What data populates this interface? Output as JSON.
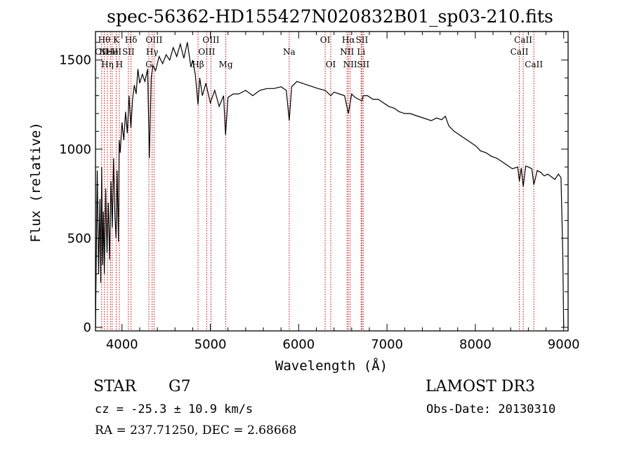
{
  "title": "spec-56362-HD155427N020832B01_sp03-210.fits",
  "footer": {
    "object_type": "STAR",
    "subclass": "G7",
    "redshift": "cz = -25.3 ± 10.9 km/s",
    "coords": "RA = 237.71250, DEC =   2.68668",
    "survey": "LAMOST DR3",
    "obs_date": "Obs-Date: 20130310"
  },
  "chart_data": {
    "type": "line",
    "title": "spec-56362-HD155427N020832B01_sp03-210.fits",
    "xlabel": "Wavelength (Å)",
    "ylabel": "Flux (relative)",
    "xlim": [
      3700,
      9050
    ],
    "ylim": [
      -20,
      1660
    ],
    "xticks": [
      4000,
      5000,
      6000,
      7000,
      8000,
      9000
    ],
    "yticks": [
      0,
      500,
      1000,
      1500
    ],
    "grid": false,
    "line_color": "#000000",
    "marker_color": "#cc0000",
    "spectrum": {
      "x": [
        3700,
        3720,
        3735,
        3750,
        3760,
        3770,
        3780,
        3790,
        3800,
        3815,
        3830,
        3845,
        3860,
        3875,
        3890,
        3905,
        3920,
        3933,
        3945,
        3960,
        3968,
        3980,
        4000,
        4020,
        4040,
        4060,
        4080,
        4101,
        4120,
        4140,
        4160,
        4180,
        4200,
        4230,
        4260,
        4290,
        4310,
        4330,
        4350,
        4380,
        4420,
        4460,
        4500,
        4540,
        4580,
        4620,
        4660,
        4700,
        4740,
        4760,
        4780,
        4800,
        4830,
        4861,
        4880,
        4910,
        4950,
        5000,
        5050,
        5100,
        5150,
        5172,
        5200,
        5260,
        5320,
        5400,
        5480,
        5560,
        5640,
        5720,
        5800,
        5860,
        5893,
        5920,
        5980,
        6040,
        6100,
        6160,
        6220,
        6300,
        6363,
        6400,
        6460,
        6520,
        6563,
        6600,
        6640,
        6680,
        6716,
        6731,
        6780,
        6840,
        6900,
        6960,
        7020,
        7080,
        7140,
        7200,
        7260,
        7320,
        7380,
        7440,
        7500,
        7560,
        7620,
        7660,
        7700,
        7760,
        7820,
        7880,
        7940,
        8000,
        8060,
        8120,
        8180,
        8240,
        8300,
        8360,
        8420,
        8480,
        8498,
        8520,
        8542,
        8570,
        8600,
        8640,
        8662,
        8700,
        8740,
        8780,
        8820,
        8860,
        8900,
        8940,
        8970,
        8990,
        9000
      ],
      "y": [
        0,
        880,
        300,
        720,
        250,
        900,
        350,
        650,
        300,
        780,
        420,
        700,
        380,
        820,
        560,
        950,
        620,
        500,
        880,
        480,
        1050,
        980,
        1150,
        1050,
        1210,
        1090,
        1300,
        1120,
        1280,
        1360,
        1310,
        1450,
        1370,
        1420,
        1380,
        1450,
        950,
        1400,
        1470,
        1440,
        1520,
        1480,
        1530,
        1500,
        1570,
        1520,
        1590,
        1510,
        1600,
        1530,
        1460,
        1500,
        1420,
        1250,
        1400,
        1300,
        1370,
        1260,
        1330,
        1240,
        1300,
        1080,
        1290,
        1310,
        1310,
        1330,
        1300,
        1330,
        1340,
        1340,
        1350,
        1330,
        1160,
        1350,
        1380,
        1370,
        1360,
        1350,
        1340,
        1330,
        1300,
        1320,
        1310,
        1300,
        1200,
        1310,
        1290,
        1280,
        1270,
        1300,
        1300,
        1280,
        1280,
        1260,
        1240,
        1230,
        1210,
        1200,
        1200,
        1190,
        1180,
        1170,
        1160,
        1175,
        1165,
        1185,
        1130,
        1100,
        1080,
        1060,
        1040,
        1020,
        990,
        980,
        960,
        950,
        930,
        910,
        890,
        900,
        820,
        895,
        790,
        905,
        900,
        890,
        800,
        880,
        870,
        850,
        860,
        845,
        830,
        860,
        840,
        400,
        0
      ]
    },
    "lines": [
      {
        "x": 3770,
        "label": "OII",
        "row": 1
      },
      {
        "x": 3799,
        "label": "Hθ",
        "row": 0
      },
      {
        "x": 3835,
        "label": "Hη",
        "row": 2
      },
      {
        "x": 3869,
        "label": "NeIII",
        "row": 1
      },
      {
        "x": 3889,
        "label": "He",
        "row": 1
      },
      {
        "x": 3934,
        "label": "K",
        "row": 0
      },
      {
        "x": 3969,
        "label": "H",
        "row": 2
      },
      {
        "x": 4072,
        "label": "SII",
        "row": 1
      },
      {
        "x": 4102,
        "label": "Hδ",
        "row": 0
      },
      {
        "x": 4304,
        "label": "G",
        "row": 2
      },
      {
        "x": 4341,
        "label": "Hγ",
        "row": 1
      },
      {
        "x": 4363,
        "label": "OIII",
        "row": 0
      },
      {
        "x": 4861,
        "label": "Hβ",
        "row": 2
      },
      {
        "x": 4959,
        "label": "OIII",
        "row": 1
      },
      {
        "x": 5007,
        "label": "OIII",
        "row": 0
      },
      {
        "x": 5175,
        "label": "Mg",
        "row": 2
      },
      {
        "x": 5893,
        "label": "Na",
        "row": 1
      },
      {
        "x": 6300,
        "label": "OI",
        "row": 0
      },
      {
        "x": 6363,
        "label": "OI",
        "row": 2
      },
      {
        "x": 6548,
        "label": "NII",
        "row": 1
      },
      {
        "x": 6563,
        "label": "Hα",
        "row": 0
      },
      {
        "x": 6583,
        "label": "NII",
        "row": 2
      },
      {
        "x": 6707,
        "label": "Li",
        "row": 1
      },
      {
        "x": 6716,
        "label": "SII",
        "row": 0
      },
      {
        "x": 6731,
        "label": "SII",
        "row": 2
      },
      {
        "x": 8498,
        "label": "CaII",
        "row": 1
      },
      {
        "x": 8542,
        "label": "CaII",
        "row": 0
      },
      {
        "x": 8662,
        "label": "CaII",
        "row": 2
      }
    ]
  }
}
